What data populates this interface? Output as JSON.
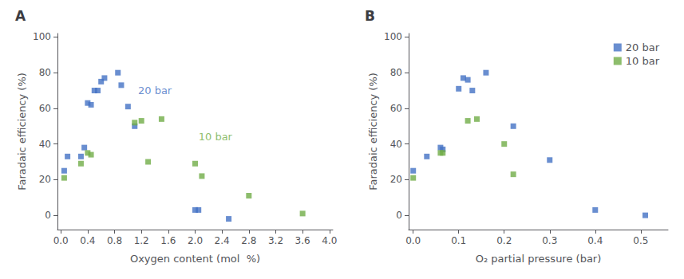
{
  "chart_data": [
    {
      "type": "scatter",
      "title": "A",
      "marker": "square",
      "grid": false,
      "xlabel": "Oxygen content (mol  %)",
      "ylabel": "Faradaic efficiency (%)",
      "series": [
        {
          "color": "#4472C4",
          "x": [
            0.05,
            0.1,
            0.3,
            0.35,
            0.4,
            0.45,
            0.5,
            0.55,
            0.6,
            0.65,
            0.85,
            0.9,
            1.0,
            1.1,
            2.0,
            2.05,
            2.5
          ],
          "values": [
            25,
            33,
            33,
            38,
            63,
            62,
            70,
            70,
            75,
            77,
            80,
            73,
            61,
            50,
            3,
            3,
            -2
          ]
        },
        {
          "color": "#70AD47",
          "x": [
            0.05,
            0.3,
            0.4,
            0.45,
            1.1,
            1.2,
            1.3,
            1.5,
            2.0,
            2.1,
            2.8,
            3.6
          ],
          "values": [
            21,
            29,
            35,
            34,
            52,
            53,
            30,
            54,
            29,
            22,
            11,
            1
          ]
        }
      ],
      "annotations": [
        {
          "x": 1.15,
          "y": 70,
          "text": "20 bar",
          "color": "#4472C4"
        },
        {
          "x": 2.05,
          "y": 44,
          "text": "10 bar",
          "color": "#70AD47"
        }
      ],
      "xlim": [
        -0.05,
        4.05
      ],
      "xticks": [
        {
          "value": 0.0,
          "label": "0.0"
        },
        0.4,
        0.8,
        1.2,
        1.6,
        {
          "value": 2.0,
          "label": "2.0"
        },
        2.4,
        2.8,
        3.2,
        3.6,
        {
          "value": 4.0,
          "label": "4.0"
        }
      ],
      "ylim": [
        -8,
        102
      ],
      "yticks": [
        0,
        20,
        40,
        60,
        80,
        100
      ]
    },
    {
      "type": "scatter",
      "title": "B",
      "marker": "square",
      "grid": false,
      "legend": "upper right",
      "xlabel": "O₂ partial pressure (bar)",
      "ylabel": "Faradaic efficiency (%)",
      "series": [
        {
          "name": "20 bar",
          "color": "#4472C4",
          "x": [
            0.0,
            0.03,
            0.06,
            0.065,
            0.1,
            0.11,
            0.12,
            0.13,
            0.16,
            0.22,
            0.3,
            0.4,
            0.51
          ],
          "values": [
            25,
            33,
            38,
            37,
            71,
            77,
            76,
            70,
            80,
            50,
            31,
            3,
            0
          ]
        },
        {
          "name": "10 bar",
          "color": "#70AD47",
          "x": [
            0.0,
            0.06,
            0.065,
            0.12,
            0.14,
            0.2,
            0.22
          ],
          "values": [
            21,
            35,
            35,
            53,
            54,
            40,
            23
          ]
        }
      ],
      "xlim": [
        -0.01,
        0.56
      ],
      "xticks": [
        {
          "value": 0.0,
          "label": "0.0"
        },
        0.1,
        0.2,
        0.3,
        0.4,
        0.5
      ],
      "ylim": [
        -8,
        102
      ],
      "yticks": [
        0,
        20,
        40,
        60,
        80,
        100
      ]
    }
  ]
}
